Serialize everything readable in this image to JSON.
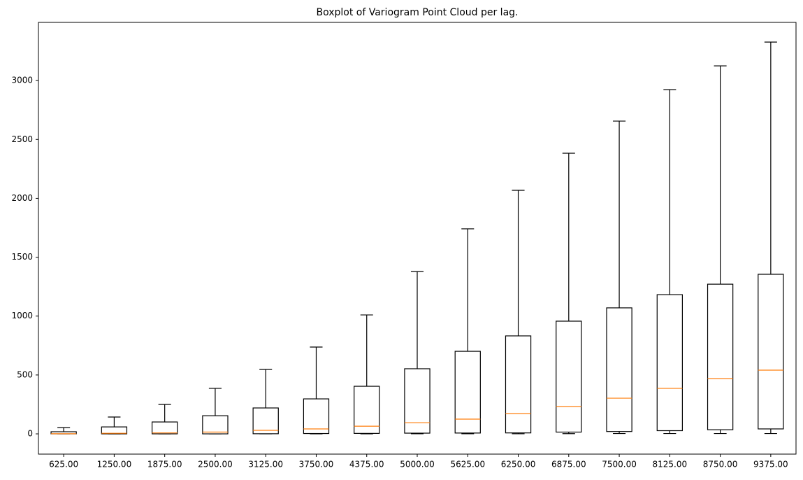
{
  "chart_data": {
    "type": "box",
    "title": "Boxplot of Variogram Point Cloud per lag.",
    "categories": [
      "625.00",
      "1250.00",
      "1875.00",
      "2500.00",
      "3125.00",
      "3750.00",
      "4375.00",
      "5000.00",
      "5625.00",
      "6250.00",
      "6875.00",
      "7500.00",
      "8125.00",
      "8750.00",
      "9375.00"
    ],
    "low": [
      0,
      0,
      0,
      0,
      0,
      0,
      0,
      1,
      1,
      1,
      2,
      3,
      3,
      3,
      3
    ],
    "q1": [
      0,
      0,
      0,
      0,
      1,
      3,
      4,
      6,
      7,
      8,
      15,
      20,
      27,
      35,
      42
    ],
    "median": [
      1,
      5,
      8,
      15,
      30,
      42,
      65,
      95,
      125,
      172,
      232,
      303,
      386,
      469,
      541
    ],
    "q3": [
      18,
      59,
      101,
      154,
      220,
      297,
      404,
      553,
      701,
      832,
      957,
      1070,
      1182,
      1271,
      1355
    ],
    "high": [
      53,
      143,
      250,
      386,
      547,
      737,
      1010,
      1378,
      1741,
      2068,
      2383,
      2656,
      2923,
      3125,
      3327
    ],
    "color": "#000000",
    "median_color": "#ff7f0e",
    "ylim": [
      -172,
      3494
    ],
    "yticks": [
      0,
      500,
      1000,
      1500,
      2000,
      2500,
      3000
    ]
  }
}
